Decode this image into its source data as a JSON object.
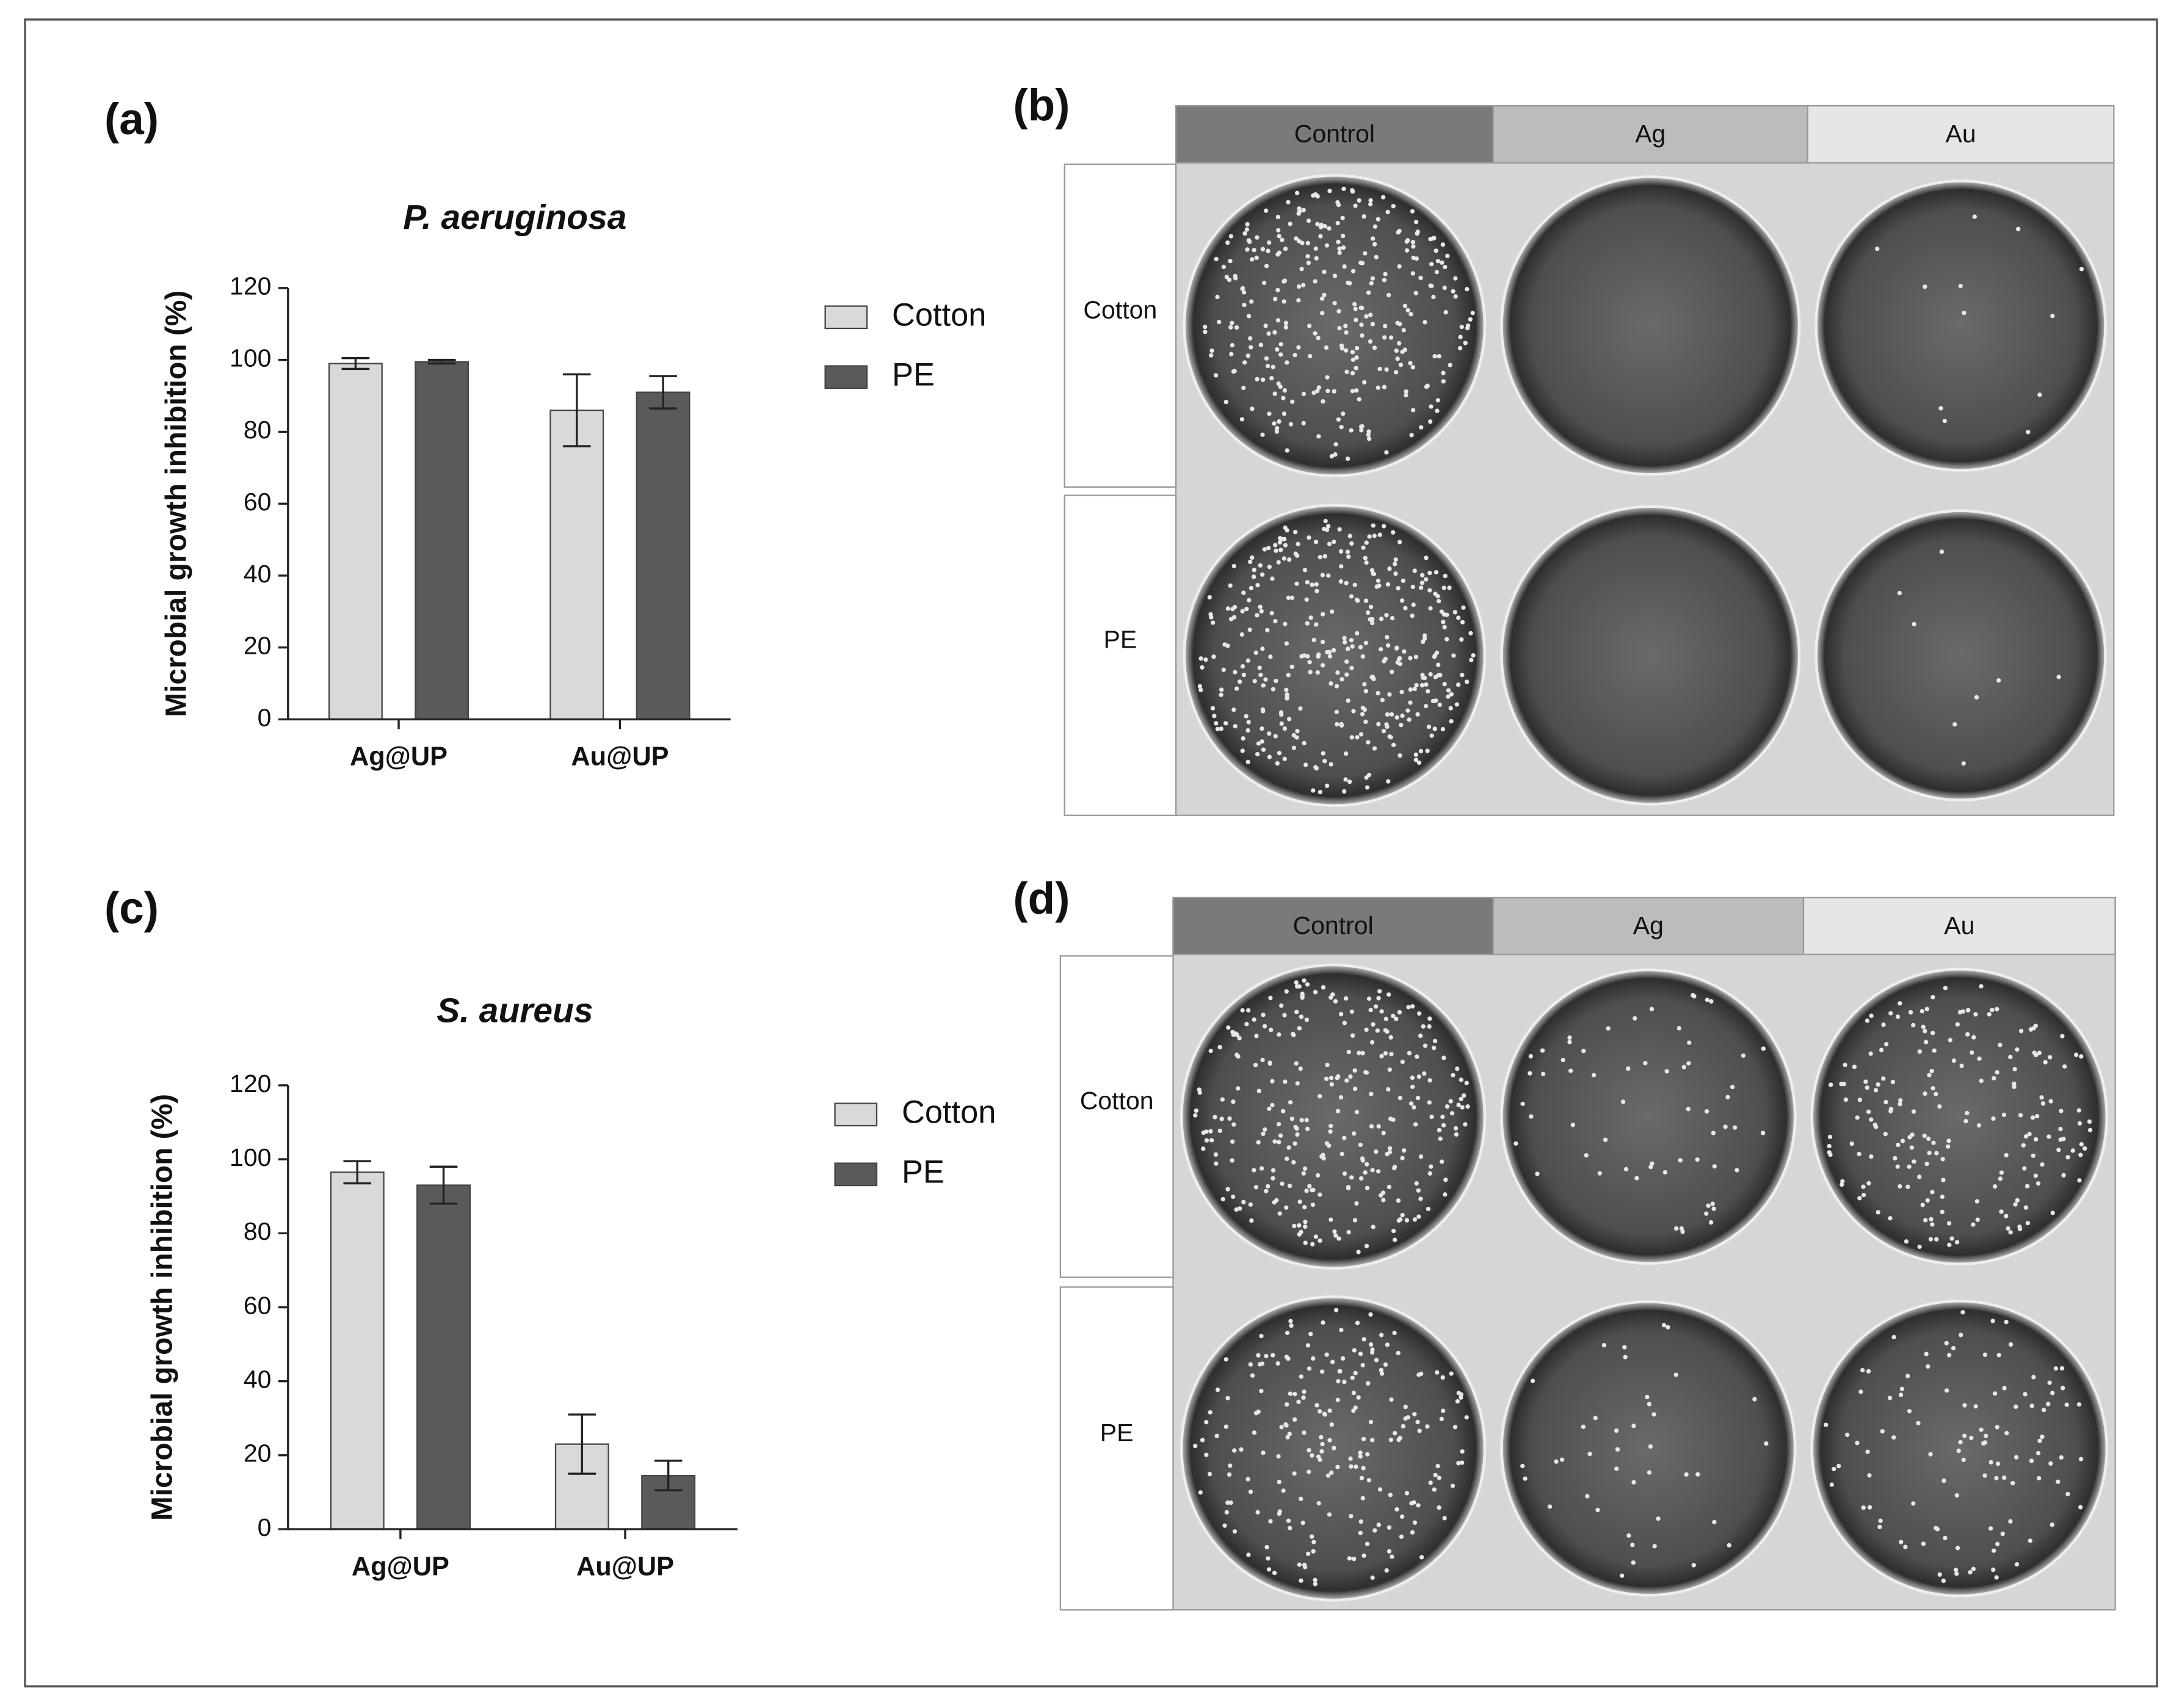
{
  "chart_data": [
    {
      "type": "bar",
      "panel_label": "(a)",
      "title": "P. aeruginosa",
      "y_label": "Microbial growth inhibition (%)",
      "categories": [
        "Ag@UP",
        "Au@UP"
      ],
      "series": [
        {
          "name": "Cotton",
          "color": "#d9d9d9",
          "values": [
            99,
            86
          ],
          "errors": [
            1.5,
            10
          ]
        },
        {
          "name": "PE",
          "color": "#5a5a5a",
          "values": [
            99.5,
            91
          ],
          "errors": [
            0.5,
            4.5
          ]
        }
      ],
      "ylim": [
        0,
        120
      ],
      "yticks": [
        0,
        20,
        40,
        60,
        80,
        100,
        120
      ],
      "legend": "right"
    },
    {
      "type": "bar",
      "panel_label": "(c)",
      "title": "S. aureus",
      "y_label": "Microbial growth inhibition (%)",
      "categories": [
        "Ag@UP",
        "Au@UP"
      ],
      "series": [
        {
          "name": "Cotton",
          "color": "#d9d9d9",
          "values": [
            96.5,
            23
          ],
          "errors": [
            3,
            8
          ]
        },
        {
          "name": "PE",
          "color": "#5a5a5a",
          "values": [
            93,
            14.5
          ],
          "errors": [
            5,
            4
          ]
        }
      ],
      "ylim": [
        0,
        120
      ],
      "yticks": [
        0,
        20,
        40,
        60,
        80,
        100,
        120
      ],
      "legend": "right"
    }
  ],
  "photo_panels": [
    {
      "label": "(b)",
      "columns": [
        "Control",
        "Ag",
        "Au"
      ],
      "rows": [
        "Cotton",
        "PE"
      ]
    },
    {
      "label": "(d)",
      "columns": [
        "Control",
        "Ag",
        "Au"
      ],
      "rows": [
        "Cotton",
        "PE"
      ]
    }
  ]
}
